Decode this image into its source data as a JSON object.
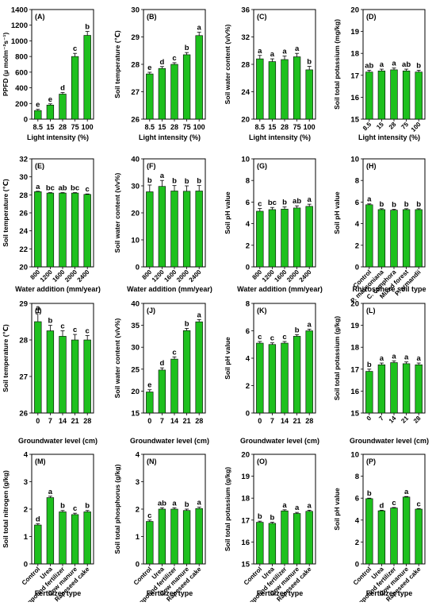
{
  "bar_color": "#1ec01e",
  "chart_data": [
    {
      "id": "A",
      "type": "bar",
      "panel_label": "(A)",
      "ylabel": "PPFD (μ molm⁻²s⁻¹)",
      "xlabel": "Light intensity (%)",
      "categories": [
        "8.5",
        "15",
        "28",
        "75",
        "100"
      ],
      "values": [
        110,
        180,
        320,
        800,
        1070
      ],
      "errors": [
        15,
        15,
        20,
        40,
        50
      ],
      "letters": [
        "e",
        "e",
        "d",
        "c",
        "b"
      ],
      "ylim": [
        0,
        1400
      ],
      "yticks": [
        0,
        200,
        400,
        600,
        800,
        1000,
        1200,
        1400
      ],
      "rotate_x": false
    },
    {
      "id": "B",
      "type": "bar",
      "panel_label": "(B)",
      "ylabel": "Soil temperature (℃)",
      "xlabel": "Light intensity (%)",
      "categories": [
        "8.5",
        "15",
        "28",
        "75",
        "100"
      ],
      "values": [
        27.65,
        27.85,
        28.0,
        28.35,
        29.05
      ],
      "errors": [
        0.06,
        0.07,
        0.06,
        0.08,
        0.12
      ],
      "letters": [
        "e",
        "d",
        "c",
        "b",
        "a"
      ],
      "ylim": [
        26,
        30
      ],
      "yticks": [
        26,
        27,
        28,
        29,
        30
      ],
      "rotate_x": false
    },
    {
      "id": "C",
      "type": "bar",
      "panel_label": "(C)",
      "ylabel": "Soil water content (v/v%)",
      "xlabel": "Light intensity (%)",
      "categories": [
        "8.5",
        "15",
        "28",
        "75",
        "100"
      ],
      "values": [
        28.8,
        28.4,
        28.7,
        29.1,
        27.2
      ],
      "errors": [
        0.5,
        0.4,
        0.5,
        0.5,
        0.5
      ],
      "letters": [
        "a",
        "a",
        "a",
        "a",
        "b"
      ],
      "ylim": [
        20,
        36
      ],
      "yticks": [
        20,
        24,
        28,
        32,
        36
      ],
      "rotate_x": false
    },
    {
      "id": "D",
      "type": "bar",
      "panel_label": "(D)",
      "ylabel": "Soil total potassium (mg/kg)",
      "xlabel": "Light intensity (%)",
      "categories": [
        "8.5",
        "15",
        "28",
        "75",
        "100"
      ],
      "values": [
        17.15,
        17.2,
        17.25,
        17.2,
        17.15
      ],
      "errors": [
        0.08,
        0.08,
        0.08,
        0.08,
        0.08
      ],
      "letters": [
        "ab",
        "a",
        "a",
        "ab",
        "b"
      ],
      "ylim": [
        15,
        20
      ],
      "yticks": [
        15,
        16,
        17,
        18,
        19,
        20
      ],
      "rotate_x": true
    },
    {
      "id": "E",
      "type": "bar",
      "panel_label": "(E)",
      "ylabel": "Soil temperature (℃)",
      "xlabel": "Water addition (mm/year)",
      "categories": [
        "800",
        "1200",
        "1600",
        "2000",
        "2400"
      ],
      "values": [
        28.35,
        28.2,
        28.2,
        28.2,
        28.05
      ],
      "errors": [
        0.05,
        0.05,
        0.05,
        0.05,
        0.05
      ],
      "letters": [
        "a",
        "bc",
        "ab",
        "bc",
        "c"
      ],
      "ylim": [
        20,
        32
      ],
      "yticks": [
        20,
        22,
        24,
        26,
        28,
        30,
        32
      ],
      "rotate_x": true
    },
    {
      "id": "F",
      "type": "bar",
      "panel_label": "(F)",
      "ylabel": "Soil water content (v/v%)",
      "xlabel": "Water addition (mm/year)",
      "categories": [
        "800",
        "1200",
        "1600",
        "2000",
        "2400"
      ],
      "values": [
        27.8,
        29.8,
        28.1,
        28.0,
        28.1
      ],
      "errors": [
        2.5,
        2.2,
        2.0,
        2.0,
        2.0
      ],
      "letters": [
        "b",
        "a",
        "b",
        "b",
        "b"
      ],
      "ylim": [
        0,
        40
      ],
      "yticks": [
        0,
        10,
        20,
        30,
        40
      ],
      "rotate_x": true
    },
    {
      "id": "G",
      "type": "bar",
      "panel_label": "(G)",
      "ylabel": "Soil pH value",
      "xlabel": "Water addition (mm/year)",
      "categories": [
        "800",
        "1200",
        "1600",
        "2000",
        "2400"
      ],
      "values": [
        5.15,
        5.3,
        5.35,
        5.45,
        5.6
      ],
      "errors": [
        0.25,
        0.2,
        0.2,
        0.2,
        0.2
      ],
      "letters": [
        "c",
        "bc",
        "b",
        "ab",
        "a"
      ],
      "ylim": [
        0,
        10
      ],
      "yticks": [
        0,
        2,
        4,
        6,
        8,
        10
      ],
      "rotate_x": true
    },
    {
      "id": "H",
      "type": "bar",
      "panel_label": "(H)",
      "ylabel": "Soil pH value",
      "xlabel": "Rhizosphere soil type",
      "categories": [
        "Control",
        "P. massoniana",
        "C. camphora",
        "Mixed forest",
        "P. armandii"
      ],
      "values": [
        5.75,
        5.3,
        5.25,
        5.3,
        5.3
      ],
      "errors": [
        0.08,
        0.08,
        0.08,
        0.08,
        0.08
      ],
      "letters": [
        "a",
        "b",
        "b",
        "b",
        "b"
      ],
      "ylim": [
        0,
        10
      ],
      "yticks": [
        0,
        2,
        4,
        6,
        8,
        10
      ],
      "rotate_x": true
    },
    {
      "id": "I",
      "type": "bar",
      "panel_label": "(I)",
      "ylabel": "Soil temperature (℃)",
      "xlabel": "Groundwater level (cm)",
      "categories": [
        "0",
        "7",
        "14",
        "21",
        "28"
      ],
      "values": [
        28.5,
        28.25,
        28.1,
        28.0,
        28.0
      ],
      "errors": [
        0.25,
        0.15,
        0.15,
        0.15,
        0.12
      ],
      "letters": [
        "a",
        "b",
        "c",
        "c",
        "c"
      ],
      "ylim": [
        26,
        29
      ],
      "yticks": [
        26,
        27,
        28,
        29
      ],
      "rotate_x": false
    },
    {
      "id": "J",
      "type": "bar",
      "panel_label": "(J)",
      "ylabel": "Soil water content (v/v%)",
      "xlabel": "Groundwater level (cm)",
      "categories": [
        "0",
        "7",
        "14",
        "21",
        "28"
      ],
      "values": [
        19.8,
        24.8,
        27.3,
        33.8,
        35.8
      ],
      "errors": [
        0.5,
        0.5,
        0.5,
        0.5,
        0.5
      ],
      "letters": [
        "e",
        "d",
        "c",
        "b",
        "a"
      ],
      "ylim": [
        15,
        40
      ],
      "yticks": [
        15,
        20,
        25,
        30,
        35,
        40
      ],
      "rotate_x": false
    },
    {
      "id": "K",
      "type": "bar",
      "panel_label": "(K)",
      "ylabel": "Soil pH value",
      "xlabel": "Groundwater level (cm)",
      "categories": [
        "0",
        "7",
        "14",
        "21",
        "28"
      ],
      "values": [
        5.1,
        5.0,
        5.1,
        5.6,
        6.0
      ],
      "errors": [
        0.12,
        0.12,
        0.12,
        0.12,
        0.12
      ],
      "letters": [
        "c",
        "c",
        "c",
        "b",
        "a"
      ],
      "ylim": [
        0,
        8
      ],
      "yticks": [
        0,
        2,
        4,
        6,
        8
      ],
      "rotate_x": false
    },
    {
      "id": "L",
      "type": "bar",
      "panel_label": "(L)",
      "ylabel": "Soil total potassium (g/kg)",
      "xlabel": "Groundwater level (cm)",
      "categories": [
        "0",
        "7",
        "14",
        "21",
        "28"
      ],
      "values": [
        16.9,
        17.2,
        17.3,
        17.25,
        17.2
      ],
      "errors": [
        0.1,
        0.08,
        0.08,
        0.08,
        0.08
      ],
      "letters": [
        "b",
        "a",
        "a",
        "a",
        "a"
      ],
      "ylim": [
        15,
        20
      ],
      "yticks": [
        15,
        16,
        17,
        18,
        19,
        20
      ],
      "rotate_x": true
    },
    {
      "id": "M",
      "type": "bar",
      "panel_label": "(M)",
      "ylabel": "Soil total nitrogen (g/kg)",
      "xlabel": "Fertilizer type",
      "categories": [
        "Control",
        "Urea",
        "Compound fertilizer",
        "Cow manure",
        "Rapeseed cake"
      ],
      "values": [
        1.42,
        2.42,
        1.9,
        1.8,
        1.9
      ],
      "errors": [
        0.05,
        0.05,
        0.05,
        0.05,
        0.05
      ],
      "letters": [
        "d",
        "a",
        "b",
        "c",
        "b"
      ],
      "ylim": [
        0,
        4
      ],
      "yticks": [
        0,
        1,
        2,
        3,
        4
      ],
      "rotate_x": true
    },
    {
      "id": "N",
      "type": "bar",
      "panel_label": "(N)",
      "ylabel": "Soil total phosphorus (g/kg)",
      "xlabel": "Fertilizer type",
      "categories": [
        "Control",
        "Urea",
        "Compound fertilizer",
        "Cow manure",
        "Rapeseed cake"
      ],
      "values": [
        1.55,
        2.0,
        2.0,
        1.95,
        2.02
      ],
      "errors": [
        0.05,
        0.05,
        0.05,
        0.05,
        0.05
      ],
      "letters": [
        "c",
        "ab",
        "a",
        "b",
        "a"
      ],
      "ylim": [
        0,
        4
      ],
      "yticks": [
        0,
        1,
        2,
        3,
        4
      ],
      "rotate_x": true
    },
    {
      "id": "O",
      "type": "bar",
      "panel_label": "(O)",
      "ylabel": "Soil total potassium (g/kg)",
      "xlabel": "Fertilizer type",
      "categories": [
        "Control",
        "Urea",
        "Compound fertilizer",
        "Cow manure",
        "Rapeseed cake"
      ],
      "values": [
        16.9,
        16.85,
        17.42,
        17.3,
        17.4
      ],
      "errors": [
        0.05,
        0.05,
        0.05,
        0.05,
        0.05
      ],
      "letters": [
        "b",
        "b",
        "a",
        "a",
        "a"
      ],
      "ylim": [
        15,
        20
      ],
      "yticks": [
        15,
        16,
        17,
        18,
        19,
        20
      ],
      "rotate_x": true
    },
    {
      "id": "P",
      "type": "bar",
      "panel_label": "(P)",
      "ylabel": "Soil pH value",
      "xlabel": "Fertilizer type",
      "categories": [
        "Control",
        "Urea",
        "Compound fertilizer",
        "Cow manure",
        "Rapeseed cake"
      ],
      "values": [
        5.95,
        4.85,
        5.1,
        6.1,
        5.0
      ],
      "errors": [
        0.05,
        0.05,
        0.05,
        0.05,
        0.05
      ],
      "letters": [
        "b",
        "d",
        "c",
        "a",
        "c"
      ],
      "ylim": [
        0,
        10
      ],
      "yticks": [
        0,
        2,
        4,
        6,
        8,
        10
      ],
      "rotate_x": true
    }
  ]
}
